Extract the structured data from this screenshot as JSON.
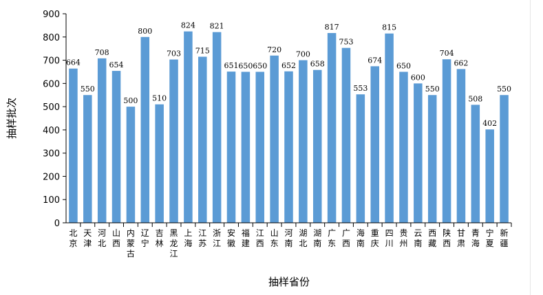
{
  "chart_data": {
    "type": "bar",
    "title": "",
    "xlabel": "抽样省份",
    "ylabel": "抽样批次",
    "ylim": [
      0,
      900
    ],
    "yticks": [
      0,
      100,
      200,
      300,
      400,
      500,
      600,
      700,
      800,
      900
    ],
    "bar_color": "#5b9bd5",
    "grid": false,
    "legend": "none",
    "categories": [
      "北京",
      "天津",
      "河北",
      "山西",
      "内蒙古",
      "辽宁",
      "吉林",
      "黑龙江",
      "上海",
      "江苏",
      "浙江",
      "安徽",
      "福建",
      "江西",
      "山东",
      "河南",
      "湖北",
      "湖南",
      "广东",
      "广西",
      "海南",
      "重庆",
      "四川",
      "贵州",
      "云南",
      "西藏",
      "陕西",
      "甘肃",
      "青海",
      "宁夏",
      "新疆"
    ],
    "values": [
      664,
      550,
      708,
      654,
      500,
      800,
      510,
      703,
      824,
      715,
      821,
      651,
      650,
      650,
      720,
      652,
      700,
      658,
      817,
      753,
      553,
      674,
      815,
      650,
      600,
      550,
      704,
      662,
      508,
      402,
      550
    ]
  }
}
